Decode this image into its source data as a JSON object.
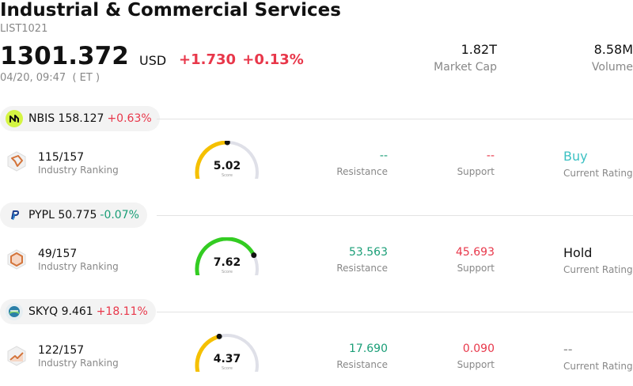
{
  "header": {
    "title": "Industrial & Commercial Services",
    "code": "LIST1021",
    "price": "1301.372",
    "currency": "USD",
    "change": "+1.730 +0.13%",
    "time": "04/20, 09:47  ( ET )",
    "market_cap": {
      "value": "1.82T",
      "label": "Market Cap"
    },
    "volume": {
      "value": "8.58M",
      "label": "Volume"
    }
  },
  "colors": {
    "up": "#e8374a",
    "down": "#1a9e77",
    "gauge_track": "#dfe0e8"
  },
  "stocks": [
    {
      "symbol": "NBIS",
      "price": "158.127",
      "pct": "+0.63%",
      "direction": "up",
      "logo_icon": "nbis-logo-icon",
      "ranking": "115/157",
      "ranking_label": "Industry Ranking",
      "score": "5.02",
      "score_value": 5.02,
      "score_label": "Score",
      "resistance": "--",
      "resistance_label": "Resistance",
      "support": "--",
      "support_label": "Support",
      "rating": "Buy",
      "rating_label": "Current Rating"
    },
    {
      "symbol": "PYPL",
      "price": "50.775",
      "pct": "-0.07%",
      "direction": "down",
      "logo_icon": "paypal-logo-icon",
      "ranking": "49/157",
      "ranking_label": "Industry Ranking",
      "score": "7.62",
      "score_value": 7.62,
      "score_label": "Score",
      "resistance": "53.563",
      "resistance_label": "Resistance",
      "support": "45.693",
      "support_label": "Support",
      "rating": "Hold",
      "rating_label": "Current Rating"
    },
    {
      "symbol": "SKYQ",
      "price": "9.461",
      "pct": "+18.11%",
      "direction": "up",
      "logo_icon": "skyq-logo-icon",
      "ranking": "122/157",
      "ranking_label": "Industry Ranking",
      "score": "4.37",
      "score_value": 4.37,
      "score_label": "Score",
      "resistance": "17.690",
      "resistance_label": "Resistance",
      "support": "0.090",
      "support_label": "Support",
      "rating": "--",
      "rating_label": "Current Rating"
    }
  ]
}
